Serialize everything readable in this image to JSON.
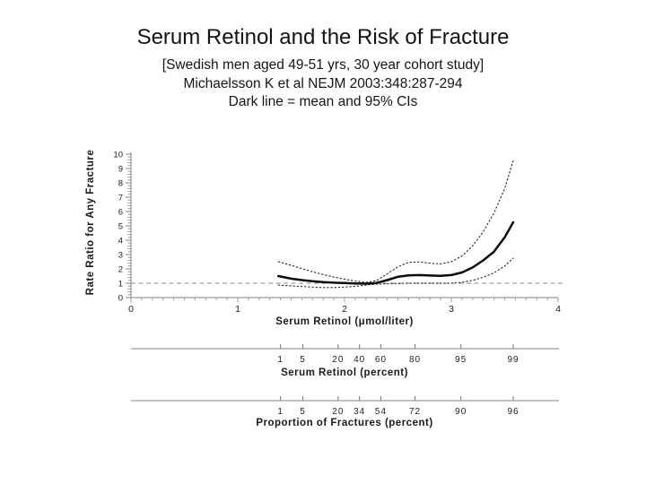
{
  "slide": {
    "title": "Serum Retinol and the Risk of Fracture",
    "subtitle1": "[Swedish men aged 49-51 yrs, 30 year cohort study]",
    "subtitle2": "Michaelsson K et al NEJM 2003:348:287-294",
    "subtitle3": "Dark line = mean and 95% CIs"
  },
  "chart_data": {
    "type": "line",
    "title": "",
    "xlabel": "Serum Retinol (μmol/liter)",
    "ylabel": "Rate Ratio for Any Fracture",
    "x_axis": {
      "label": "Serum Retinol (μmol/liter)",
      "min": 0,
      "max": 4,
      "major_ticks": [
        0,
        1,
        2,
        3,
        4
      ],
      "minor_step": 0.1
    },
    "y_axis": {
      "label": "Rate Ratio for Any Fracture",
      "min": 0,
      "max": 10,
      "major_ticks": [
        0,
        1,
        2,
        3,
        4,
        5,
        6,
        7,
        8,
        9,
        10
      ],
      "minor_step": 0.2
    },
    "reference_line": {
      "y": 1,
      "style": "dashed"
    },
    "grid": false,
    "legend": "Dark line = mean and 95% CIs",
    "series": [
      {
        "name": "mean",
        "style": "solid-thick",
        "x": [
          1.38,
          1.5,
          1.6,
          1.7,
          1.8,
          1.9,
          2.0,
          2.1,
          2.2,
          2.3,
          2.4,
          2.5,
          2.6,
          2.7,
          2.8,
          2.9,
          3.0,
          3.1,
          3.2,
          3.3,
          3.4,
          3.5,
          3.58
        ],
        "y": [
          1.5,
          1.32,
          1.22,
          1.14,
          1.08,
          1.04,
          1.01,
          0.99,
          0.97,
          1.02,
          1.22,
          1.45,
          1.55,
          1.57,
          1.54,
          1.52,
          1.57,
          1.75,
          2.1,
          2.6,
          3.2,
          4.2,
          5.25
        ]
      },
      {
        "name": "upper-95ci",
        "style": "dotted",
        "x": [
          1.38,
          1.5,
          1.6,
          1.7,
          1.8,
          1.9,
          2.0,
          2.1,
          2.2,
          2.3,
          2.4,
          2.5,
          2.6,
          2.7,
          2.8,
          2.9,
          3.0,
          3.1,
          3.2,
          3.3,
          3.4,
          3.5,
          3.58
        ],
        "y": [
          2.5,
          2.25,
          2.02,
          1.8,
          1.6,
          1.43,
          1.28,
          1.15,
          1.06,
          1.18,
          1.65,
          2.15,
          2.45,
          2.48,
          2.4,
          2.35,
          2.5,
          2.9,
          3.6,
          4.6,
          5.9,
          7.6,
          9.55
        ]
      },
      {
        "name": "lower-95ci",
        "style": "dotted",
        "x": [
          1.38,
          1.5,
          1.6,
          1.7,
          1.8,
          1.9,
          2.0,
          2.1,
          2.2,
          2.3,
          2.4,
          2.5,
          2.6,
          2.7,
          2.8,
          2.9,
          3.0,
          3.1,
          3.2,
          3.3,
          3.4,
          3.5,
          3.58
        ],
        "y": [
          0.87,
          0.82,
          0.77,
          0.73,
          0.7,
          0.7,
          0.73,
          0.78,
          0.87,
          0.93,
          0.96,
          0.98,
          1.0,
          1.0,
          1.0,
          1.0,
          1.0,
          1.06,
          1.2,
          1.42,
          1.72,
          2.2,
          2.75
        ]
      }
    ],
    "secondary_axes": [
      {
        "label": "Serum Retinol (percent)",
        "ticks": [
          {
            "label": "1",
            "x": 1.4
          },
          {
            "label": "5",
            "x": 1.61
          },
          {
            "label": "20",
            "x": 1.94
          },
          {
            "label": "40",
            "x": 2.14
          },
          {
            "label": "60",
            "x": 2.34
          },
          {
            "label": "80",
            "x": 2.66
          },
          {
            "label": "95",
            "x": 3.09
          },
          {
            "label": "99",
            "x": 3.58
          }
        ]
      },
      {
        "label": "Proportion of Fractures (percent)",
        "ticks": [
          {
            "label": "1",
            "x": 1.4
          },
          {
            "label": "5",
            "x": 1.61
          },
          {
            "label": "20",
            "x": 1.94
          },
          {
            "label": "34",
            "x": 2.14
          },
          {
            "label": "54",
            "x": 2.34
          },
          {
            "label": "72",
            "x": 2.66
          },
          {
            "label": "90",
            "x": 3.09
          },
          {
            "label": "96",
            "x": 3.58
          }
        ]
      }
    ],
    "colors": {
      "text": "#141414",
      "axis": "#9a9a9a",
      "tick_label": "#1d1d1d",
      "mean_line": "#0b0b0b",
      "ci_line": "#2e2e2e",
      "reference_line": "#8a8a8a"
    }
  }
}
